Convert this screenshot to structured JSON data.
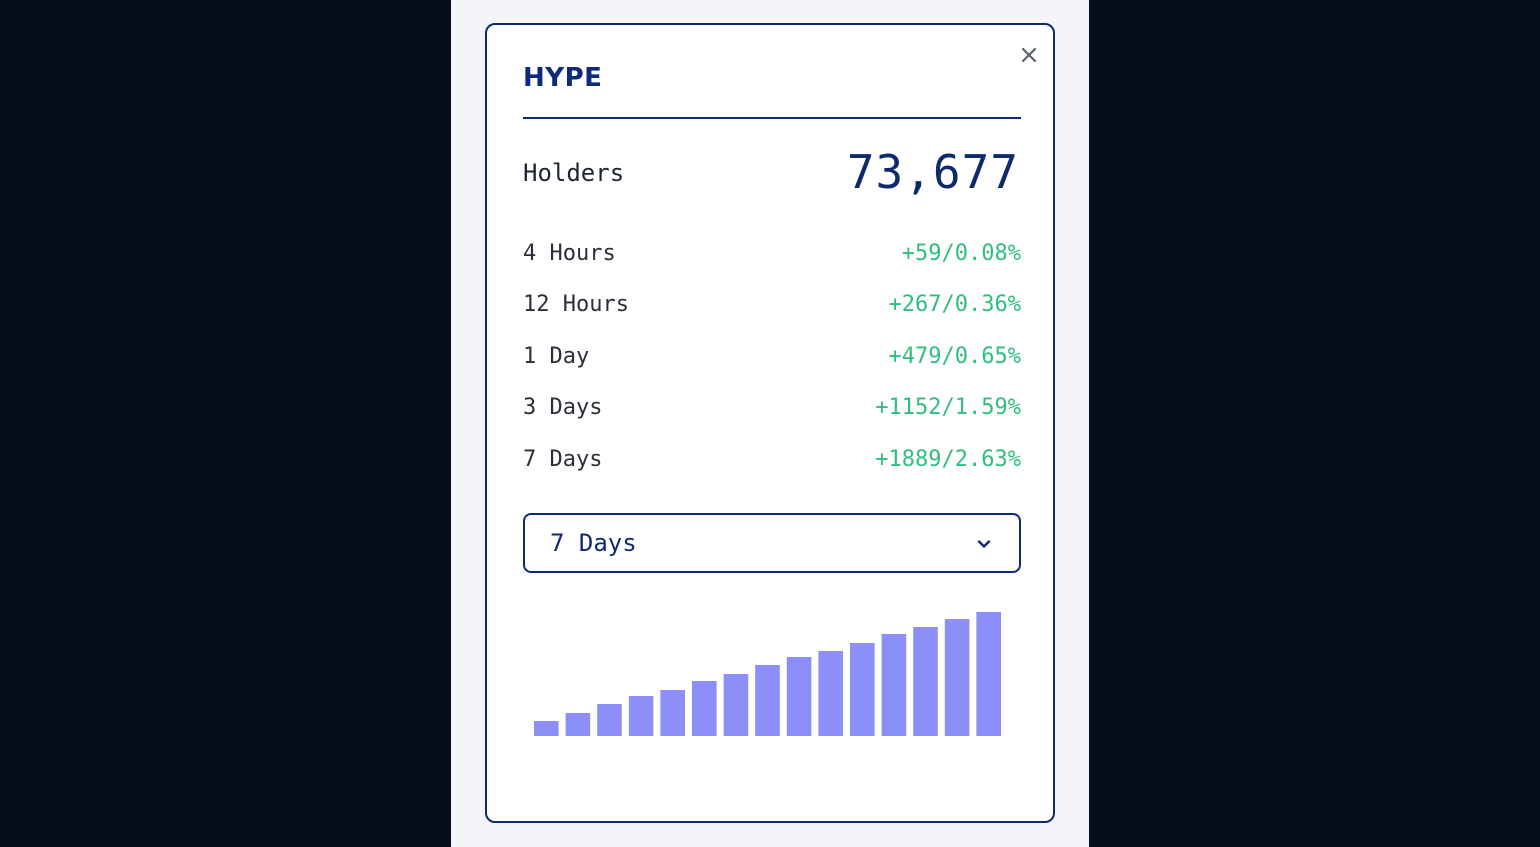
{
  "card": {
    "title": "HYPE",
    "close_icon": "close-icon"
  },
  "holders": {
    "label": "Holders",
    "value": "73,677"
  },
  "stats": [
    {
      "label": "4 Hours",
      "value": "+59/0.08%"
    },
    {
      "label": "12 Hours",
      "value": "+267/0.36%"
    },
    {
      "label": "1 Day",
      "value": "+479/0.65%"
    },
    {
      "label": "3 Days",
      "value": "+1152/1.59%"
    },
    {
      "label": "7 Days",
      "value": "+1889/2.63%"
    }
  ],
  "period_select": {
    "selected": "7 Days",
    "icon": "chevron-down-icon"
  },
  "colors": {
    "accent": "#0e2a6e",
    "positive": "#2fbf7d",
    "bar": "#8b8ff7"
  },
  "chart_data": {
    "type": "bar",
    "values": [
      15,
      23,
      32,
      40,
      46,
      55,
      62,
      71,
      79,
      85,
      93,
      102,
      109,
      117,
      124
    ],
    "ylim": [
      0,
      124
    ]
  }
}
